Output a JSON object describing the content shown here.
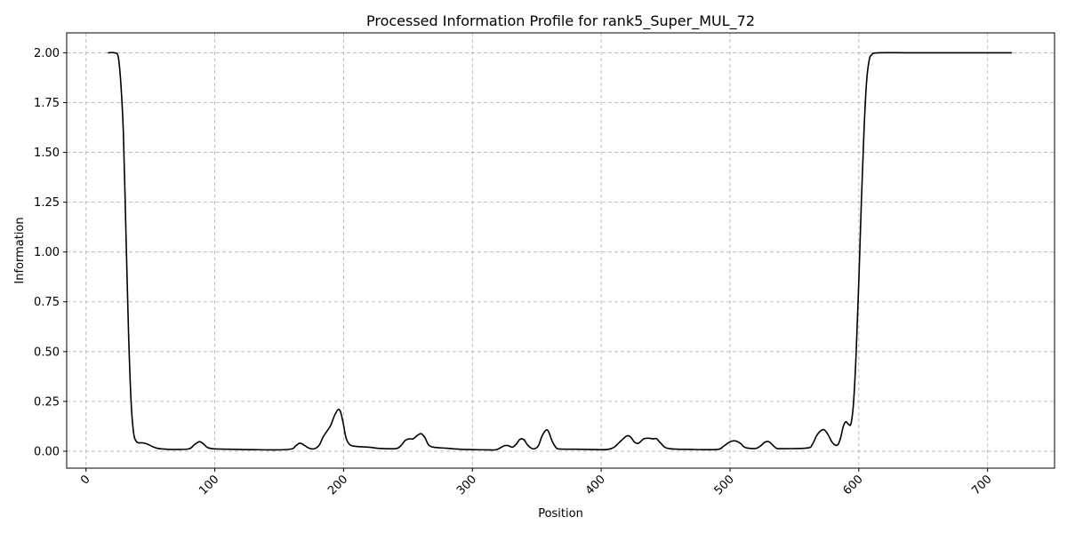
{
  "chart_data": {
    "type": "line",
    "title": "Processed Information Profile for rank5_Super_MUL_72",
    "xlabel": "Position",
    "ylabel": "Information",
    "xlim": [
      -15,
      752
    ],
    "ylim": [
      -0.085,
      2.1
    ],
    "xticks": [
      0,
      100,
      200,
      300,
      400,
      500,
      600,
      700
    ],
    "yticks": [
      0.0,
      0.25,
      0.5,
      0.75,
      1.0,
      1.25,
      1.5,
      1.75,
      2.0
    ],
    "ytick_labels": [
      "0.00",
      "0.25",
      "0.50",
      "0.75",
      "1.00",
      "1.25",
      "1.50",
      "1.75",
      "2.00"
    ],
    "grid": true,
    "line_color": "#000000",
    "grid_color": "#b0b0b0",
    "series": [
      {
        "x": [
          17,
          22,
          25,
          27,
          29,
          31,
          33,
          35,
          37,
          39,
          41,
          44,
          48,
          52,
          56,
          60,
          65,
          70,
          80,
          84,
          88,
          91,
          94,
          98,
          110,
          130,
          150,
          160,
          163,
          166,
          169,
          173,
          177,
          181,
          184,
          187,
          190,
          193,
          196,
          198,
          200,
          202,
          205,
          210,
          220,
          228,
          240,
          244,
          248,
          251,
          254,
          257,
          260,
          263,
          266,
          270,
          280,
          290,
          300,
          310,
          318,
          322,
          325,
          328,
          331,
          334,
          337,
          340,
          343,
          347,
          351,
          354,
          357,
          359,
          362,
          365,
          368,
          380,
          400,
          405,
          410,
          415,
          420,
          423,
          426,
          429,
          433,
          437,
          440,
          443,
          446,
          452,
          470,
          490,
          495,
          500,
          504,
          508,
          512,
          520,
          524,
          527,
          530,
          533,
          536,
          540,
          560,
          564,
          567,
          570,
          573,
          576,
          579,
          582,
          584,
          586,
          588,
          590,
          592,
          594,
          596,
          598,
          600,
          602,
          604,
          606,
          608,
          610,
          615,
          640,
          680,
          719
        ],
        "y": [
          2.0,
          2.0,
          1.98,
          1.85,
          1.6,
          1.1,
          0.6,
          0.25,
          0.09,
          0.05,
          0.042,
          0.042,
          0.035,
          0.022,
          0.014,
          0.011,
          0.009,
          0.009,
          0.012,
          0.032,
          0.048,
          0.038,
          0.02,
          0.013,
          0.01,
          0.008,
          0.007,
          0.012,
          0.028,
          0.04,
          0.032,
          0.016,
          0.012,
          0.03,
          0.07,
          0.1,
          0.13,
          0.18,
          0.21,
          0.19,
          0.13,
          0.065,
          0.032,
          0.024,
          0.02,
          0.014,
          0.013,
          0.025,
          0.055,
          0.062,
          0.062,
          0.078,
          0.088,
          0.07,
          0.032,
          0.02,
          0.015,
          0.01,
          0.008,
          0.007,
          0.007,
          0.018,
          0.028,
          0.028,
          0.02,
          0.035,
          0.06,
          0.058,
          0.03,
          0.012,
          0.025,
          0.075,
          0.105,
          0.1,
          0.05,
          0.018,
          0.011,
          0.01,
          0.008,
          0.009,
          0.02,
          0.05,
          0.077,
          0.07,
          0.045,
          0.04,
          0.062,
          0.065,
          0.062,
          0.063,
          0.042,
          0.014,
          0.009,
          0.009,
          0.025,
          0.047,
          0.052,
          0.04,
          0.018,
          0.014,
          0.028,
          0.045,
          0.048,
          0.032,
          0.015,
          0.013,
          0.016,
          0.035,
          0.075,
          0.1,
          0.108,
          0.085,
          0.048,
          0.03,
          0.035,
          0.07,
          0.125,
          0.148,
          0.135,
          0.14,
          0.25,
          0.5,
          0.85,
          1.25,
          1.6,
          1.85,
          1.96,
          1.99,
          2.0,
          2.0,
          2.0,
          2.0
        ]
      }
    ]
  }
}
